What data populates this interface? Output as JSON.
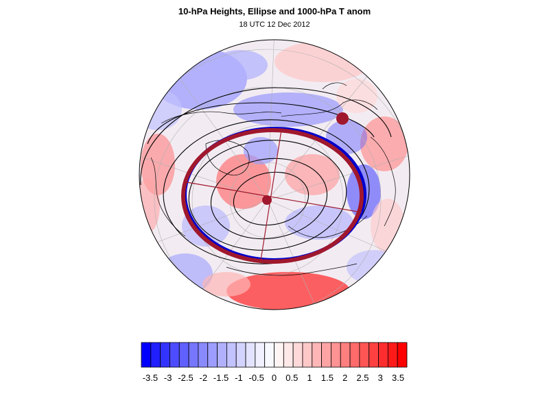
{
  "title": "10-hPa Heights, Ellipse and 1000-hPa T anom",
  "subtitle": "18 UTC 12 Dec 2012",
  "colorbar": {
    "tick_labels": [
      "-3.5",
      "-3",
      "-2.5",
      "-2",
      "-1.5",
      "-1",
      "-0.5",
      "0",
      "0.5",
      "1",
      "1.5",
      "2",
      "2.5",
      "3",
      "3.5"
    ],
    "range": [
      -3.75,
      3.75
    ],
    "step": 0.25,
    "colors_negative": [
      "#0000ff",
      "#1f1fff",
      "#3333ff",
      "#4d4dff",
      "#6060ff",
      "#7676ff",
      "#8a8aff",
      "#9d9dff",
      "#b0b0ff",
      "#c2c2ff",
      "#d3d3ff",
      "#e3e3ff",
      "#f0f0ff",
      "#f8f8ff"
    ],
    "colors_positive": [
      "#fff4f4",
      "#ffe8e8",
      "#ffd9d9",
      "#ffc8c8",
      "#ffb6b6",
      "#ffa4a4",
      "#ff9292",
      "#ff7f7f",
      "#ff6a6a",
      "#ff5555",
      "#ff4040",
      "#ff2d2d",
      "#ff1a1a",
      "#ff0000"
    ]
  },
  "map": {
    "projection": "polar-stereographic (north polar)",
    "ellipse_color": "#a0182d",
    "ellipse_shadow_color": "#0000cc",
    "contour_color": "#000000"
  }
}
